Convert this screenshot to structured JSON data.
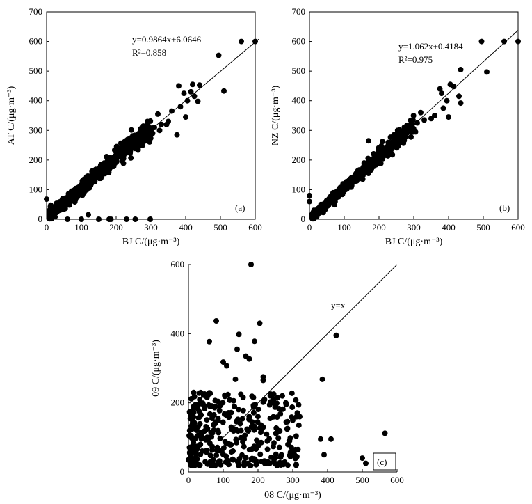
{
  "chart_data": [
    {
      "type": "scatter",
      "id": "a",
      "panel_label": "(a)",
      "xlabel": "BJ C/(μg·m⁻³)",
      "ylabel": "AT C/(μg·m⁻³)",
      "xlim": [
        0,
        600
      ],
      "ylim": [
        0,
        700
      ],
      "xticks": [
        0,
        100,
        200,
        300,
        400,
        500,
        600
      ],
      "yticks": [
        0,
        100,
        200,
        300,
        400,
        500,
        600,
        700
      ],
      "fit": {
        "slope": 0.9864,
        "intercept": 6.0646,
        "x_range": [
          0,
          610
        ]
      },
      "equation": "y=0.9864x+6.0646",
      "r2": "R²=0.858",
      "cloud": {
        "seed": 11,
        "n": 620,
        "slope": 1.0,
        "intercept": 6,
        "noise": 13,
        "xmin": 8,
        "xmax": 300,
        "skew": 1.6
      },
      "extra_points": [
        [
          560,
          600
        ],
        [
          600,
          600
        ],
        [
          495,
          553
        ],
        [
          510,
          433
        ],
        [
          440,
          453
        ],
        [
          420,
          455
        ],
        [
          380,
          450
        ],
        [
          395,
          425
        ],
        [
          405,
          400
        ],
        [
          425,
          415
        ],
        [
          435,
          398
        ],
        [
          400,
          345
        ],
        [
          375,
          285
        ],
        [
          385,
          380
        ],
        [
          415,
          430
        ],
        [
          360,
          365
        ],
        [
          350,
          330
        ],
        [
          330,
          320
        ],
        [
          320,
          355
        ],
        [
          345,
          320
        ],
        [
          310,
          310
        ],
        [
          305,
          290
        ],
        [
          325,
          300
        ],
        [
          0,
          68
        ],
        [
          60,
          0
        ],
        [
          100,
          0
        ],
        [
          120,
          15
        ],
        [
          150,
          0
        ],
        [
          180,
          0
        ],
        [
          185,
          0
        ],
        [
          230,
          0
        ],
        [
          255,
          0
        ],
        [
          298,
          0
        ],
        [
          300,
          300
        ],
        [
          290,
          330
        ],
        [
          270,
          305
        ],
        [
          265,
          280
        ]
      ]
    },
    {
      "type": "scatter",
      "id": "b",
      "panel_label": "(b)",
      "xlabel": "BJ C/(μg·m⁻³)",
      "ylabel": "NZ C/(μg·m⁻³)",
      "xlim": [
        0,
        600
      ],
      "ylim": [
        0,
        700
      ],
      "xticks": [
        0,
        100,
        200,
        300,
        400,
        500,
        600
      ],
      "yticks": [
        0,
        100,
        200,
        300,
        400,
        500,
        600,
        700
      ],
      "fit": {
        "slope": 1.062,
        "intercept": 0.4184,
        "x_range": [
          0,
          600
        ]
      },
      "equation": "y=1.062x+0.4184",
      "r2": "R²=0.975",
      "cloud": {
        "seed": 23,
        "n": 620,
        "slope": 1.06,
        "intercept": 0,
        "noise": 9,
        "xmin": 8,
        "xmax": 300,
        "skew": 1.6
      },
      "extra_points": [
        [
          495,
          600
        ],
        [
          560,
          600
        ],
        [
          600,
          600
        ],
        [
          510,
          497
        ],
        [
          435,
          505
        ],
        [
          405,
          455
        ],
        [
          375,
          440
        ],
        [
          380,
          425
        ],
        [
          395,
          400
        ],
        [
          430,
          415
        ],
        [
          435,
          392
        ],
        [
          400,
          345
        ],
        [
          385,
          375
        ],
        [
          415,
          448
        ],
        [
          360,
          350
        ],
        [
          350,
          340
        ],
        [
          330,
          335
        ],
        [
          320,
          360
        ],
        [
          305,
          295
        ],
        [
          310,
          325
        ],
        [
          0,
          80
        ],
        [
          0,
          60
        ],
        [
          170,
          265
        ],
        [
          275,
          290
        ],
        [
          290,
          310
        ]
      ]
    },
    {
      "type": "scatter",
      "id": "c",
      "panel_label": "(c)",
      "xlabel": "08 C/(μg·m⁻³)",
      "ylabel": "09 C/(μg·m⁻³)",
      "xlim": [
        0,
        600
      ],
      "ylim": [
        0,
        600
      ],
      "xticks": [
        0,
        100,
        200,
        300,
        400,
        500,
        600
      ],
      "yticks": [
        0,
        200,
        400,
        600
      ],
      "fit": {
        "slope": 1.0,
        "intercept": 0,
        "x_range": [
          100,
          600
        ]
      },
      "equation": "y=x",
      "r2": "",
      "cloud": {
        "seed": 37,
        "n": 330,
        "mode": "blob",
        "xmin": 2,
        "xmax": 320,
        "ymin": 18,
        "ymax": 230,
        "skew": 1.3,
        "yskew": 1.5
      },
      "extra_points": [
        [
          180,
          600
        ],
        [
          80,
          437
        ],
        [
          205,
          430
        ],
        [
          145,
          398
        ],
        [
          190,
          378
        ],
        [
          60,
          377
        ],
        [
          100,
          318
        ],
        [
          110,
          307
        ],
        [
          165,
          335
        ],
        [
          175,
          327
        ],
        [
          140,
          355
        ],
        [
          135,
          268
        ],
        [
          215,
          275
        ],
        [
          215,
          265
        ],
        [
          385,
          268
        ],
        [
          425,
          395
        ],
        [
          565,
          112
        ],
        [
          500,
          40
        ],
        [
          510,
          25
        ],
        [
          380,
          95
        ],
        [
          410,
          95
        ],
        [
          390,
          50
        ],
        [
          320,
          160
        ],
        [
          300,
          150
        ],
        [
          270,
          220
        ],
        [
          280,
          200
        ],
        [
          315,
          65
        ],
        [
          2,
          105
        ],
        [
          0,
          35
        ],
        [
          15,
          230
        ]
      ]
    }
  ]
}
